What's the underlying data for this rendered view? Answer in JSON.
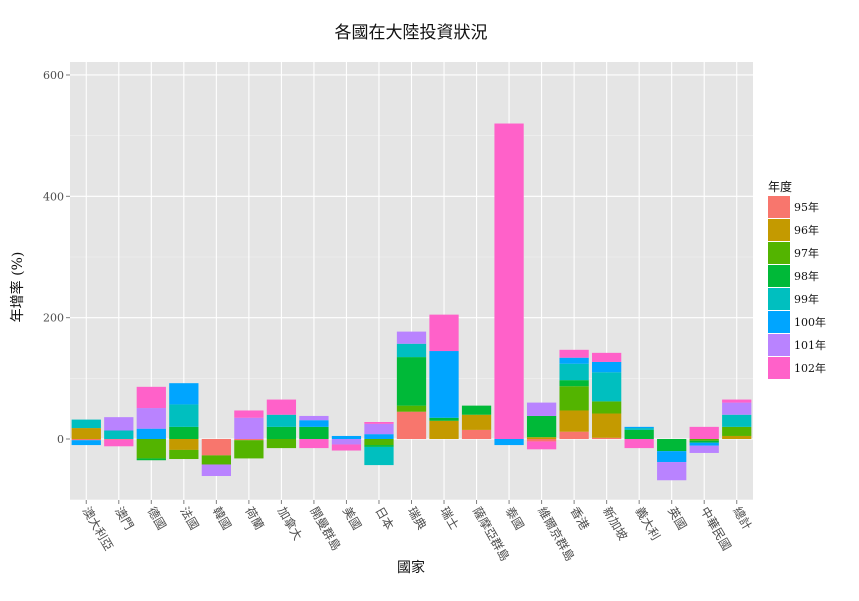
{
  "chart_data": {
    "type": "bar",
    "stacked": true,
    "title": "各國在大陸投資狀況",
    "xlabel": "國家",
    "ylabel": "年增率 (%)",
    "ylim": [
      -100,
      620
    ],
    "yticks": [
      0,
      200,
      400,
      600
    ],
    "grid": true,
    "legend_position": "right",
    "legend_title": "年度",
    "categories": [
      "澳大利亞",
      "澳門",
      "德國",
      "法國",
      "韓國",
      "荷蘭",
      "加拿大",
      "開曼群島",
      "美國",
      "日本",
      "瑞典",
      "瑞士",
      "薩摩亞群島",
      "泰國",
      "維爾京群島",
      "香港",
      "新加坡",
      "義大利",
      "英國",
      "中華民國",
      "總計"
    ],
    "series": [
      {
        "name": "95年",
        "color": "#F8766D",
        "values": [
          -2,
          -1,
          0,
          0,
          -27,
          -2,
          0,
          0,
          0,
          0,
          45,
          0,
          15,
          0,
          -4,
          12,
          2,
          0,
          0,
          0,
          0
        ]
      },
      {
        "name": "96年",
        "color": "#C49A00",
        "values": [
          18,
          0,
          0,
          -18,
          0,
          0,
          0,
          0,
          0,
          0,
          0,
          30,
          25,
          0,
          3,
          35,
          40,
          0,
          0,
          0,
          5
        ]
      },
      {
        "name": "97年",
        "color": "#53B400",
        "values": [
          0,
          0,
          -32,
          -15,
          -15,
          -30,
          -15,
          0,
          0,
          -10,
          10,
          0,
          0,
          0,
          0,
          40,
          20,
          0,
          0,
          -3,
          15
        ]
      },
      {
        "name": "98年",
        "color": "#00B938",
        "values": [
          0,
          0,
          -3,
          20,
          0,
          0,
          20,
          20,
          0,
          -3,
          80,
          5,
          15,
          0,
          35,
          10,
          0,
          15,
          -20,
          -3,
          0
        ]
      },
      {
        "name": "99年",
        "color": "#00BFBF",
        "values": [
          14,
          14,
          0,
          37,
          0,
          0,
          20,
          0,
          0,
          -30,
          22,
          0,
          0,
          0,
          0,
          27,
          48,
          3,
          0,
          0,
          20
        ]
      },
      {
        "name": "100年",
        "color": "#00A5FF",
        "values": [
          -8,
          0,
          17,
          35,
          0,
          0,
          0,
          11,
          5,
          8,
          0,
          110,
          0,
          -10,
          0,
          10,
          17,
          2,
          -18,
          -5,
          0
        ]
      },
      {
        "name": "101年",
        "color": "#B983FF",
        "values": [
          0,
          22,
          34,
          0,
          -19,
          35,
          0,
          7,
          -9,
          17,
          20,
          0,
          0,
          0,
          22,
          0,
          0,
          0,
          -30,
          -12,
          20
        ]
      },
      {
        "name": "102年",
        "color": "#FF61C9",
        "values": [
          0,
          -11,
          35,
          0,
          0,
          12,
          25,
          -15,
          -10,
          3,
          0,
          60,
          0,
          520,
          -13,
          13,
          15,
          -15,
          0,
          20,
          5
        ]
      }
    ]
  }
}
